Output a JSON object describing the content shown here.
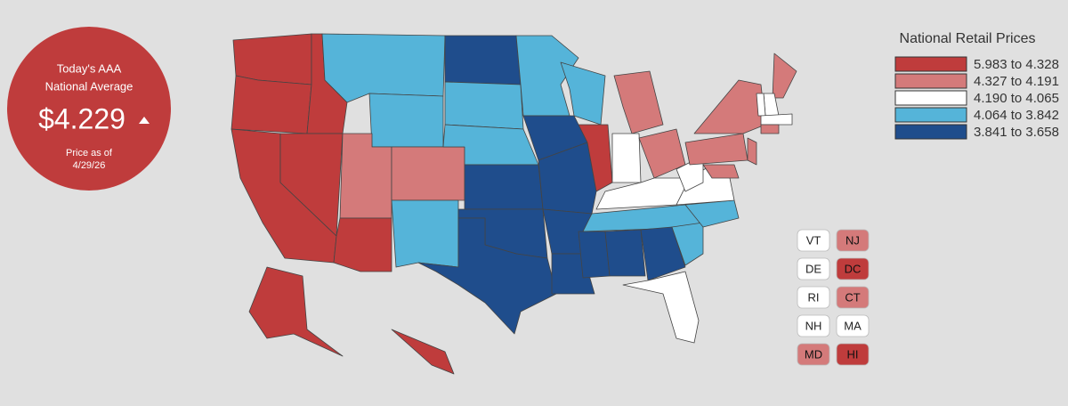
{
  "badge": {
    "line1": "Today's AAA",
    "line2": "National Average",
    "price": "$4.229",
    "as_of_line1": "Price as of",
    "as_of_line2": "4/29/26",
    "color": "#bf3c3c"
  },
  "legend": {
    "title": "National Retail Prices",
    "items": [
      {
        "label": "5.983 to 4.328",
        "color": "#bf3c3c"
      },
      {
        "label": "4.327 to 4.191",
        "color": "#d47a7a"
      },
      {
        "label": "4.190 to 4.065",
        "color": "#ffffff"
      },
      {
        "label": "4.064 to 3.842",
        "color": "#55b4d9"
      },
      {
        "label": "3.841 to 3.658",
        "color": "#1f4d8c"
      }
    ]
  },
  "small_states": [
    {
      "label": "VT",
      "color": "#ffffff"
    },
    {
      "label": "NJ",
      "color": "#d47a7a"
    },
    {
      "label": "DE",
      "color": "#ffffff"
    },
    {
      "label": "DC",
      "color": "#bf3c3c"
    },
    {
      "label": "RI",
      "color": "#ffffff"
    },
    {
      "label": "CT",
      "color": "#d47a7a"
    },
    {
      "label": "NH",
      "color": "#ffffff"
    },
    {
      "label": "MA",
      "color": "#ffffff"
    },
    {
      "label": "MD",
      "color": "#d47a7a"
    },
    {
      "label": "HI",
      "color": "#bf3c3c"
    }
  ]
}
